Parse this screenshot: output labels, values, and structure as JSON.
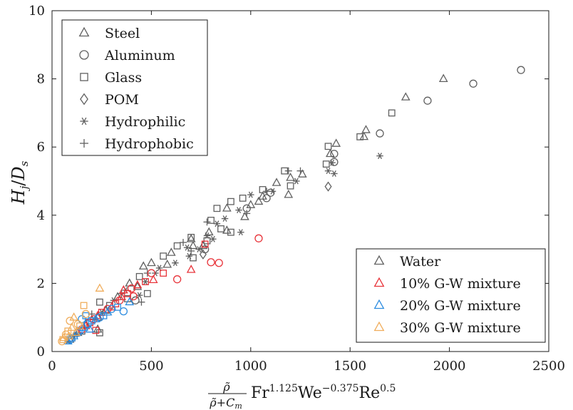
{
  "chart_data": {
    "type": "scatter",
    "xlabel": {
      "frac_num": "ρ̃",
      "frac_den": "ρ̃+C",
      "frac_den_sub": "m",
      "fr": "Fr",
      "fr_exp": "1.125",
      "we": "We",
      "we_exp": "−0.375",
      "re": "Re",
      "re_exp": "0.5"
    },
    "ylabel": {
      "h": "H",
      "h_sub": "j",
      "slash": "/",
      "d": "D",
      "d_sub": "s"
    },
    "xlim": [
      0,
      2500
    ],
    "ylim": [
      0,
      10
    ],
    "x_ticks": [
      0,
      500,
      1000,
      1500,
      2000,
      2500
    ],
    "y_ticks": [
      0,
      2,
      4,
      6,
      8,
      10
    ],
    "grid": false,
    "legend_material": {
      "position": "top-left",
      "entries": [
        {
          "label": "Steel",
          "marker": "triangle"
        },
        {
          "label": "Aluminum",
          "marker": "circle"
        },
        {
          "label": "Glass",
          "marker": "square"
        },
        {
          "label": "POM",
          "marker": "diamond"
        },
        {
          "label": "Hydrophilic",
          "marker": "asterisk"
        },
        {
          "label": "Hydrophobic",
          "marker": "plus"
        }
      ]
    },
    "legend_fluid": {
      "position": "bottom-right",
      "entries": [
        {
          "label": "Water",
          "color": "#606060"
        },
        {
          "label": "10% G-W mixture",
          "color": "#e8343a"
        },
        {
          "label": "20% G-W mixture",
          "color": "#2e8de0"
        },
        {
          "label": "30% G-W mixture",
          "color": "#f0ad5c"
        }
      ]
    },
    "series": [
      {
        "name": "Water",
        "color": "#606060",
        "points": [
          {
            "m": "circle",
            "x": 2360,
            "y": 8.26
          },
          {
            "m": "circle",
            "x": 2120,
            "y": 7.86
          },
          {
            "m": "triangle",
            "x": 1970,
            "y": 8.0
          },
          {
            "m": "circle",
            "x": 1890,
            "y": 7.36
          },
          {
            "m": "triangle",
            "x": 1780,
            "y": 7.46
          },
          {
            "m": "square",
            "x": 1710,
            "y": 7.0
          },
          {
            "m": "circle",
            "x": 1650,
            "y": 6.4
          },
          {
            "m": "asterisk",
            "x": 1650,
            "y": 5.74
          },
          {
            "m": "triangle",
            "x": 1580,
            "y": 6.5
          },
          {
            "m": "triangle",
            "x": 1570,
            "y": 6.3
          },
          {
            "m": "square",
            "x": 1550,
            "y": 6.3
          },
          {
            "m": "triangle",
            "x": 1430,
            "y": 6.1
          },
          {
            "m": "circle",
            "x": 1420,
            "y": 5.8
          },
          {
            "m": "square",
            "x": 1390,
            "y": 6.02
          },
          {
            "m": "triangle",
            "x": 1400,
            "y": 5.8
          },
          {
            "m": "circle",
            "x": 1420,
            "y": 5.56
          },
          {
            "m": "asterisk",
            "x": 1410,
            "y": 5.54
          },
          {
            "m": "square",
            "x": 1380,
            "y": 5.5
          },
          {
            "m": "asterisk",
            "x": 1390,
            "y": 5.3
          },
          {
            "m": "asterisk",
            "x": 1420,
            "y": 5.22
          },
          {
            "m": "diamond",
            "x": 1390,
            "y": 4.84
          },
          {
            "m": "triangle",
            "x": 1260,
            "y": 5.2
          },
          {
            "m": "plus",
            "x": 1250,
            "y": 5.3
          },
          {
            "m": "square",
            "x": 1170,
            "y": 5.3
          },
          {
            "m": "plus",
            "x": 1190,
            "y": 5.3
          },
          {
            "m": "triangle",
            "x": 1200,
            "y": 5.1
          },
          {
            "m": "asterisk",
            "x": 1230,
            "y": 5.0
          },
          {
            "m": "square",
            "x": 1200,
            "y": 4.86
          },
          {
            "m": "triangle",
            "x": 1130,
            "y": 4.95
          },
          {
            "m": "asterisk",
            "x": 1110,
            "y": 4.7
          },
          {
            "m": "triangle",
            "x": 1190,
            "y": 4.6
          },
          {
            "m": "plus",
            "x": 1080,
            "y": 4.7
          },
          {
            "m": "circle",
            "x": 1100,
            "y": 4.66
          },
          {
            "m": "square",
            "x": 1060,
            "y": 4.75
          },
          {
            "m": "triangle",
            "x": 1060,
            "y": 4.55
          },
          {
            "m": "asterisk",
            "x": 1000,
            "y": 4.6
          },
          {
            "m": "circle",
            "x": 1080,
            "y": 4.5
          },
          {
            "m": "triangle",
            "x": 1040,
            "y": 4.4
          },
          {
            "m": "triangle",
            "x": 1000,
            "y": 4.3
          },
          {
            "m": "square",
            "x": 960,
            "y": 4.5
          },
          {
            "m": "asterisk",
            "x": 940,
            "y": 4.15
          },
          {
            "m": "circle",
            "x": 980,
            "y": 4.2
          },
          {
            "m": "plus",
            "x": 980,
            "y": 4.05
          },
          {
            "m": "square",
            "x": 900,
            "y": 4.4
          },
          {
            "m": "triangle",
            "x": 880,
            "y": 4.2
          },
          {
            "m": "asterisk",
            "x": 870,
            "y": 3.9
          },
          {
            "m": "triangle",
            "x": 970,
            "y": 3.95
          },
          {
            "m": "square",
            "x": 830,
            "y": 4.2
          },
          {
            "m": "asterisk",
            "x": 830,
            "y": 3.75
          },
          {
            "m": "square",
            "x": 800,
            "y": 3.85
          },
          {
            "m": "plus",
            "x": 780,
            "y": 3.8
          },
          {
            "m": "square",
            "x": 850,
            "y": 3.6
          },
          {
            "m": "triangle",
            "x": 880,
            "y": 3.55
          },
          {
            "m": "square",
            "x": 900,
            "y": 3.5
          },
          {
            "m": "asterisk",
            "x": 950,
            "y": 3.5
          },
          {
            "m": "triangle",
            "x": 790,
            "y": 3.5
          },
          {
            "m": "asterisk",
            "x": 780,
            "y": 3.4
          },
          {
            "m": "square",
            "x": 780,
            "y": 3.25
          },
          {
            "m": "asterisk",
            "x": 810,
            "y": 3.3
          },
          {
            "m": "triangle",
            "x": 760,
            "y": 3.1
          },
          {
            "m": "asterisk",
            "x": 740,
            "y": 3.0
          },
          {
            "m": "circle",
            "x": 770,
            "y": 3.0
          },
          {
            "m": "diamond",
            "x": 760,
            "y": 2.85
          },
          {
            "m": "triangle",
            "x": 700,
            "y": 3.3
          },
          {
            "m": "square",
            "x": 700,
            "y": 3.35
          },
          {
            "m": "triangle",
            "x": 710,
            "y": 3.1
          },
          {
            "m": "asterisk",
            "x": 680,
            "y": 3.05
          },
          {
            "m": "plus",
            "x": 660,
            "y": 3.2
          },
          {
            "m": "square",
            "x": 630,
            "y": 3.1
          },
          {
            "m": "triangle",
            "x": 600,
            "y": 2.9
          },
          {
            "m": "asterisk",
            "x": 690,
            "y": 2.8
          },
          {
            "m": "square",
            "x": 710,
            "y": 2.75
          },
          {
            "m": "plus",
            "x": 700,
            "y": 2.95
          },
          {
            "m": "asterisk",
            "x": 620,
            "y": 2.6
          },
          {
            "m": "triangle",
            "x": 580,
            "y": 2.55
          },
          {
            "m": "square",
            "x": 560,
            "y": 2.8
          },
          {
            "m": "asterisk",
            "x": 540,
            "y": 2.45
          },
          {
            "m": "triangle",
            "x": 500,
            "y": 2.6
          },
          {
            "m": "asterisk",
            "x": 520,
            "y": 2.3
          },
          {
            "m": "plus",
            "x": 480,
            "y": 2.3
          },
          {
            "m": "triangle",
            "x": 460,
            "y": 2.5
          },
          {
            "m": "square",
            "x": 440,
            "y": 2.2
          },
          {
            "m": "asterisk",
            "x": 470,
            "y": 2.05
          },
          {
            "m": "triangle",
            "x": 430,
            "y": 1.9
          },
          {
            "m": "asterisk",
            "x": 440,
            "y": 1.65
          },
          {
            "m": "plus",
            "x": 450,
            "y": 1.45
          },
          {
            "m": "circle",
            "x": 420,
            "y": 1.5
          },
          {
            "m": "square",
            "x": 480,
            "y": 1.7
          },
          {
            "m": "triangle",
            "x": 390,
            "y": 2.0
          },
          {
            "m": "asterisk",
            "x": 370,
            "y": 1.8
          },
          {
            "m": "square",
            "x": 380,
            "y": 1.55
          },
          {
            "m": "triangle",
            "x": 330,
            "y": 1.6
          },
          {
            "m": "asterisk",
            "x": 310,
            "y": 1.5
          },
          {
            "m": "plus",
            "x": 350,
            "y": 1.7
          },
          {
            "m": "square",
            "x": 290,
            "y": 1.35
          },
          {
            "m": "triangle",
            "x": 270,
            "y": 1.2
          },
          {
            "m": "asterisk",
            "x": 250,
            "y": 1.15
          },
          {
            "m": "square",
            "x": 240,
            "y": 1.45
          },
          {
            "m": "triangle",
            "x": 230,
            "y": 1.0
          },
          {
            "m": "asterisk",
            "x": 210,
            "y": 0.95
          },
          {
            "m": "plus",
            "x": 200,
            "y": 1.1
          },
          {
            "m": "square",
            "x": 190,
            "y": 0.85
          },
          {
            "m": "triangle",
            "x": 170,
            "y": 0.8
          },
          {
            "m": "asterisk",
            "x": 160,
            "y": 0.7
          },
          {
            "m": "square",
            "x": 150,
            "y": 0.6
          },
          {
            "m": "triangle",
            "x": 130,
            "y": 0.55
          },
          {
            "m": "asterisk",
            "x": 120,
            "y": 0.5
          },
          {
            "m": "plus",
            "x": 110,
            "y": 0.45
          },
          {
            "m": "square",
            "x": 100,
            "y": 0.4
          },
          {
            "m": "triangle",
            "x": 90,
            "y": 0.35
          },
          {
            "m": "asterisk",
            "x": 80,
            "y": 0.3
          },
          {
            "m": "square",
            "x": 240,
            "y": 0.55
          },
          {
            "m": "triangle",
            "x": 230,
            "y": 0.65
          }
        ]
      },
      {
        "name": "10% G-W mixture",
        "color": "#e8343a",
        "points": [
          {
            "m": "circle",
            "x": 1040,
            "y": 3.32
          },
          {
            "m": "circle",
            "x": 840,
            "y": 2.6
          },
          {
            "m": "circle",
            "x": 800,
            "y": 2.62
          },
          {
            "m": "square",
            "x": 770,
            "y": 3.15
          },
          {
            "m": "triangle",
            "x": 700,
            "y": 2.4
          },
          {
            "m": "circle",
            "x": 630,
            "y": 2.12
          },
          {
            "m": "square",
            "x": 560,
            "y": 2.3
          },
          {
            "m": "triangle",
            "x": 510,
            "y": 2.1
          },
          {
            "m": "circle",
            "x": 500,
            "y": 2.3
          },
          {
            "m": "square",
            "x": 470,
            "y": 2.05
          },
          {
            "m": "triangle",
            "x": 430,
            "y": 1.95
          },
          {
            "m": "circle",
            "x": 400,
            "y": 1.85
          },
          {
            "m": "square",
            "x": 380,
            "y": 1.7
          },
          {
            "m": "triangle",
            "x": 350,
            "y": 1.6
          },
          {
            "m": "circle",
            "x": 340,
            "y": 1.5
          },
          {
            "m": "square",
            "x": 320,
            "y": 1.4
          },
          {
            "m": "triangle",
            "x": 300,
            "y": 1.3
          },
          {
            "m": "circle",
            "x": 280,
            "y": 1.25
          },
          {
            "m": "square",
            "x": 250,
            "y": 1.15
          },
          {
            "m": "triangle",
            "x": 230,
            "y": 1.05
          },
          {
            "m": "circle",
            "x": 210,
            "y": 0.95
          },
          {
            "m": "square",
            "x": 190,
            "y": 0.85
          },
          {
            "m": "triangle",
            "x": 170,
            "y": 0.75
          },
          {
            "m": "circle",
            "x": 150,
            "y": 0.65
          },
          {
            "m": "square",
            "x": 220,
            "y": 0.62
          },
          {
            "m": "triangle",
            "x": 360,
            "y": 1.8
          },
          {
            "m": "circle",
            "x": 410,
            "y": 1.62
          }
        ]
      },
      {
        "name": "20% G-W mixture",
        "color": "#2e8de0",
        "points": [
          {
            "m": "circle",
            "x": 360,
            "y": 1.18
          },
          {
            "m": "triangle",
            "x": 390,
            "y": 1.45
          },
          {
            "m": "square",
            "x": 330,
            "y": 1.3
          },
          {
            "m": "circle",
            "x": 300,
            "y": 1.25
          },
          {
            "m": "triangle",
            "x": 280,
            "y": 1.15
          },
          {
            "m": "square",
            "x": 260,
            "y": 1.05
          },
          {
            "m": "circle",
            "x": 240,
            "y": 1.0
          },
          {
            "m": "triangle",
            "x": 220,
            "y": 0.95
          },
          {
            "m": "square",
            "x": 200,
            "y": 0.9
          },
          {
            "m": "circle",
            "x": 180,
            "y": 0.8
          },
          {
            "m": "triangle",
            "x": 160,
            "y": 0.7
          },
          {
            "m": "square",
            "x": 140,
            "y": 0.62
          },
          {
            "m": "circle",
            "x": 130,
            "y": 0.55
          },
          {
            "m": "triangle",
            "x": 110,
            "y": 0.45
          },
          {
            "m": "square",
            "x": 100,
            "y": 0.4
          },
          {
            "m": "circle",
            "x": 90,
            "y": 0.35
          },
          {
            "m": "triangle",
            "x": 80,
            "y": 0.3
          },
          {
            "m": "square",
            "x": 170,
            "y": 1.05
          },
          {
            "m": "circle",
            "x": 150,
            "y": 0.95
          },
          {
            "m": "triangle",
            "x": 190,
            "y": 0.65
          }
        ]
      },
      {
        "name": "30% G-W mixture",
        "color": "#f0ad5c",
        "points": [
          {
            "m": "triangle",
            "x": 240,
            "y": 1.85
          },
          {
            "m": "triangle",
            "x": 110,
            "y": 1.0
          },
          {
            "m": "circle",
            "x": 90,
            "y": 0.9
          },
          {
            "m": "square",
            "x": 160,
            "y": 1.35
          },
          {
            "m": "circle",
            "x": 130,
            "y": 0.8
          },
          {
            "m": "triangle",
            "x": 100,
            "y": 0.7
          },
          {
            "m": "square",
            "x": 80,
            "y": 0.6
          },
          {
            "m": "circle",
            "x": 70,
            "y": 0.5
          },
          {
            "m": "triangle",
            "x": 60,
            "y": 0.4
          },
          {
            "m": "square",
            "x": 55,
            "y": 0.35
          },
          {
            "m": "circle",
            "x": 50,
            "y": 0.3
          },
          {
            "m": "triangle",
            "x": 120,
            "y": 0.55
          },
          {
            "m": "square",
            "x": 140,
            "y": 0.75
          },
          {
            "m": "circle",
            "x": 170,
            "y": 1.1
          },
          {
            "m": "triangle",
            "x": 85,
            "y": 0.45
          }
        ]
      }
    ]
  }
}
